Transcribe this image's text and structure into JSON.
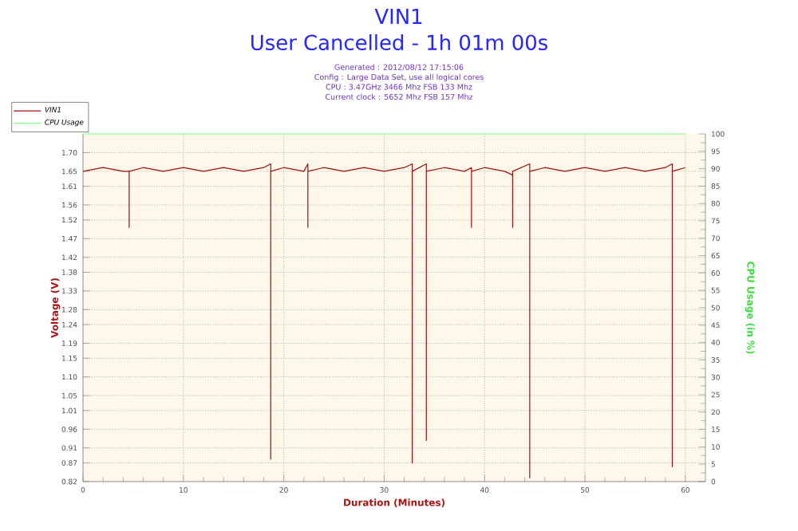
{
  "chart_data": {
    "type": "line",
    "title": "VIN1",
    "subtitle": "User Cancelled - 1h 01m 00s",
    "annotations": [
      "Generated : 2012/08/12 17:15:06",
      "Config : Large Data Set, use all logical cores",
      "CPU : 3.47GHz 3466 Mhz FSB 133 Mhz",
      "Current clock : 5652 Mhz FSB 157 Mhz"
    ],
    "xlabel": "Duration (Minutes)",
    "ylabel": "Voltage (V)",
    "y2label": "CPU Usage (in %)",
    "xlim": [
      0,
      62
    ],
    "xticks": [
      0,
      10,
      20,
      30,
      40,
      50,
      60
    ],
    "ylim": [
      0.82,
      1.75
    ],
    "yticks": [
      0.82,
      0.87,
      0.91,
      0.96,
      1.01,
      1.05,
      {
        "value": 1.1,
        "label": "1.10"
      },
      1.15,
      1.19,
      1.24,
      1.28,
      1.33,
      1.38,
      1.42,
      1.47,
      1.52,
      1.56,
      1.61,
      1.65,
      {
        "value": 1.7,
        "label": "1.70"
      }
    ],
    "y2lim": [
      0,
      100
    ],
    "y2ticks": [
      0,
      5,
      10,
      15,
      20,
      25,
      30,
      35,
      40,
      45,
      50,
      55,
      60,
      65,
      70,
      75,
      80,
      85,
      90,
      95,
      100
    ],
    "grid": true,
    "legend": "top left",
    "marker": "none",
    "line_style": "solid",
    "series": [
      {
        "name": "VIN1",
        "color": "#a01010",
        "x": [
          0,
          2,
          4,
          4.6,
          4.6,
          4.6,
          6,
          8,
          10,
          12,
          14,
          16,
          18,
          18.7,
          18.7,
          18.7,
          20,
          22,
          22.4,
          22.4,
          22.4,
          24,
          26,
          28,
          30,
          32,
          32.8,
          32.8,
          32.8,
          34.2,
          34.2,
          34.2,
          36,
          38,
          38.7,
          38.7,
          38.7,
          40,
          42,
          42.8,
          42.8,
          42.8,
          44.5,
          44.5,
          44.5,
          46,
          48,
          50,
          52,
          54,
          56,
          58,
          58.7,
          58.7,
          58.7,
          60
        ],
        "values": [
          1.65,
          1.66,
          1.65,
          1.65,
          1.5,
          1.65,
          1.66,
          1.65,
          1.66,
          1.65,
          1.66,
          1.65,
          1.66,
          1.67,
          0.88,
          1.65,
          1.66,
          1.65,
          1.67,
          1.5,
          1.65,
          1.66,
          1.65,
          1.66,
          1.65,
          1.66,
          1.67,
          0.87,
          1.65,
          1.67,
          0.93,
          1.65,
          1.66,
          1.65,
          1.66,
          1.5,
          1.65,
          1.66,
          1.65,
          1.64,
          1.5,
          1.65,
          1.67,
          0.83,
          1.65,
          1.66,
          1.65,
          1.66,
          1.65,
          1.66,
          1.65,
          1.66,
          1.67,
          0.86,
          1.65,
          1.66
        ]
      },
      {
        "name": "CPU Usage",
        "color": "#80ff80",
        "axis": "y2",
        "x": [
          0,
          60
        ],
        "values": [
          100,
          100
        ]
      }
    ]
  }
}
